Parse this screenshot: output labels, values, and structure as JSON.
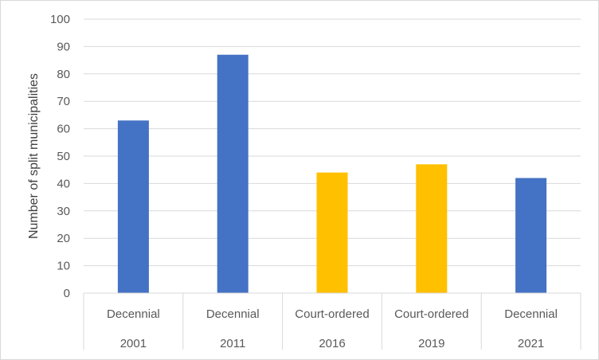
{
  "chart_data": {
    "type": "bar",
    "ylabel": "Number of split municipalities",
    "ylim": [
      0,
      100
    ],
    "y_ticks": [
      0,
      10,
      20,
      30,
      40,
      50,
      60,
      70,
      80,
      90,
      100
    ],
    "grid": true,
    "categories": [
      {
        "type": "Decennial",
        "year": "2001",
        "value": 63,
        "color": "#4472C4"
      },
      {
        "type": "Decennial",
        "year": "2011",
        "value": 87,
        "color": "#4472C4"
      },
      {
        "type": "Court-ordered",
        "year": "2016",
        "value": 44,
        "color": "#FFC000"
      },
      {
        "type": "Court-ordered",
        "year": "2019",
        "value": 47,
        "color": "#FFC000"
      },
      {
        "type": "Decennial",
        "year": "2021",
        "value": 42,
        "color": "#4472C4"
      }
    ]
  }
}
